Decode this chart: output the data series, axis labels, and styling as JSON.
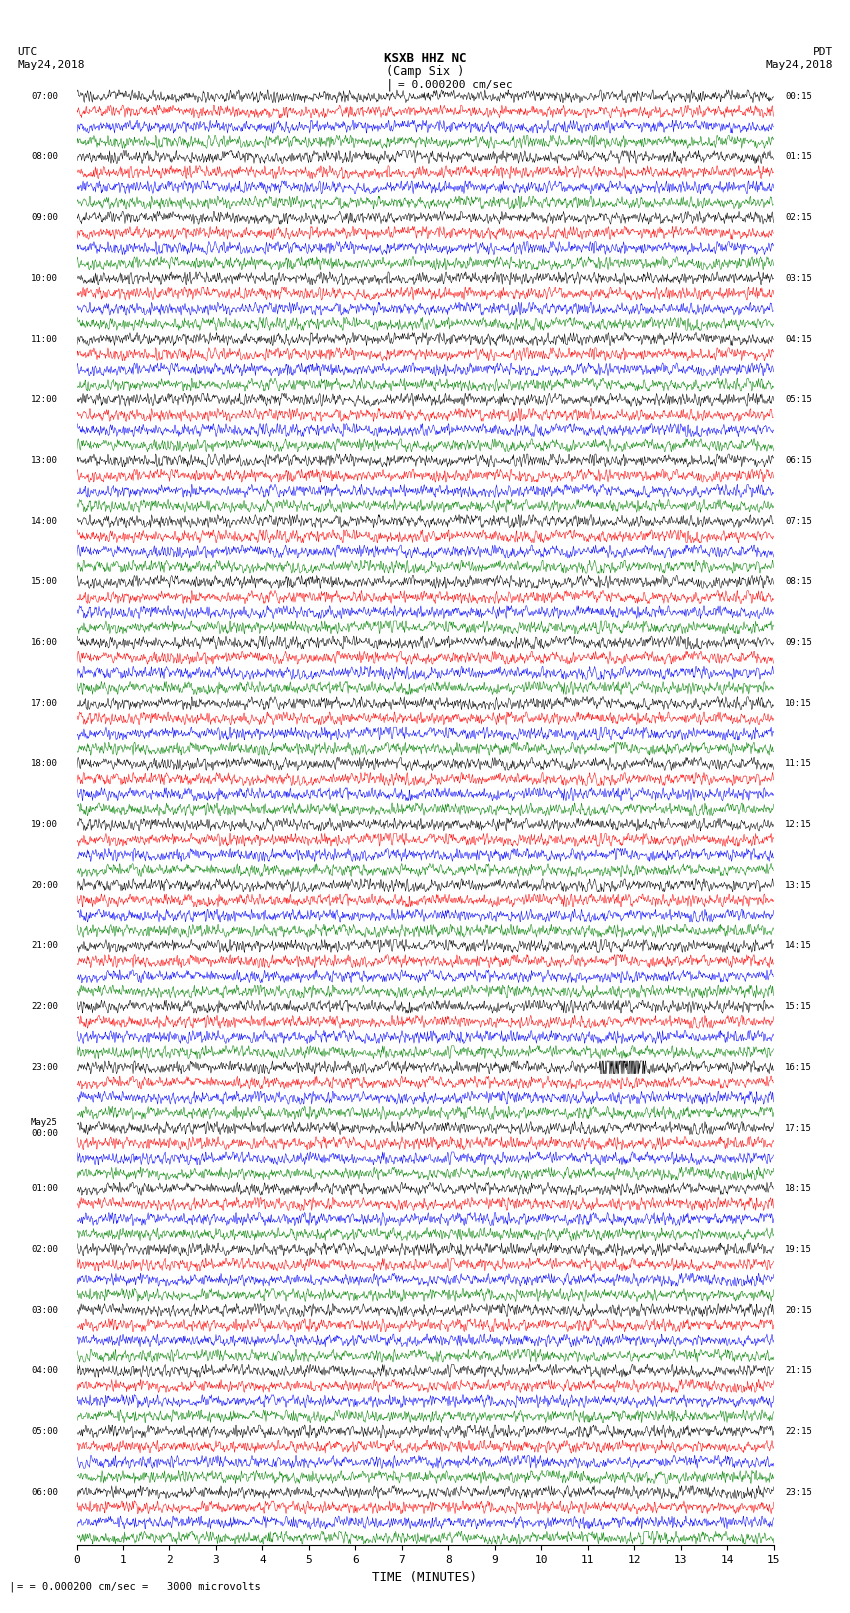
{
  "title_line1": "KSXB HHZ NC",
  "title_line2": "(Camp Six )",
  "scale_label": "= 0.000200 cm/sec",
  "bottom_label": "= 0.000200 cm/sec =   3000 microvolts",
  "utc_header1": "UTC",
  "utc_header2": "May24,2018",
  "pdt_header1": "PDT",
  "pdt_header2": "May24,2018",
  "xlabel": "TIME (MINUTES)",
  "utc_labels": [
    "07:00",
    "08:00",
    "09:00",
    "10:00",
    "11:00",
    "12:00",
    "13:00",
    "14:00",
    "15:00",
    "16:00",
    "17:00",
    "18:00",
    "19:00",
    "20:00",
    "21:00",
    "22:00",
    "23:00",
    "May25\n00:00",
    "01:00",
    "02:00",
    "03:00",
    "04:00",
    "05:00",
    "06:00"
  ],
  "pdt_labels": [
    "00:15",
    "01:15",
    "02:15",
    "03:15",
    "04:15",
    "05:15",
    "06:15",
    "07:15",
    "08:15",
    "09:15",
    "10:15",
    "11:15",
    "12:15",
    "13:15",
    "14:15",
    "15:15",
    "16:15",
    "17:15",
    "18:15",
    "19:15",
    "20:15",
    "21:15",
    "22:15",
    "23:15"
  ],
  "colors": [
    "black",
    "red",
    "blue",
    "green"
  ],
  "n_groups": 24,
  "traces_per_group": 4,
  "bg_color": "white",
  "figsize": [
    8.5,
    16.13
  ],
  "dpi": 100,
  "n_pts": 1800,
  "n_minutes": 15
}
